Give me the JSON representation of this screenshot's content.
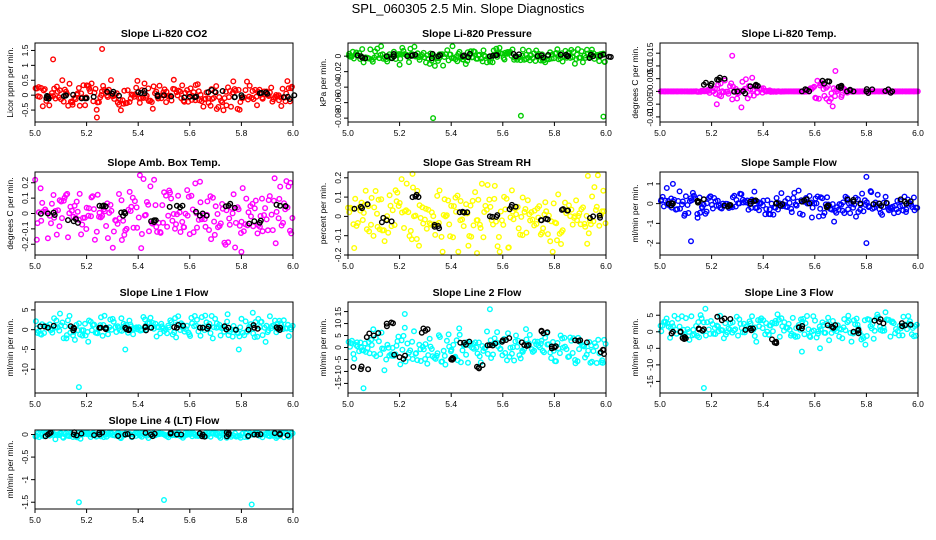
{
  "title": "SPL_060305  2.5 Min. Slope Diagnostics",
  "chart_data": [
    {
      "type": "scatter",
      "title": "Slope Li-820 CO2",
      "ylabel": "Licor ppm per min.",
      "xlim": [
        5.0,
        6.0
      ],
      "xticks": [
        "5.0",
        "5.2",
        "5.4",
        "5.6",
        "5.8",
        "6.0"
      ],
      "ylim": [
        -0.9,
        1.75
      ],
      "yticks": [
        -0.5,
        0.0,
        0.5,
        1.0,
        1.5
      ],
      "color": "#ff0000",
      "spread": 0.22,
      "center": 0.0,
      "black_points": [
        [
          5.05,
          -0.05
        ],
        [
          5.12,
          0.0
        ],
        [
          5.2,
          -0.1
        ],
        [
          5.3,
          0.05
        ],
        [
          5.4,
          0.1
        ],
        [
          5.5,
          0.0
        ],
        [
          5.6,
          -0.05
        ],
        [
          5.7,
          0.1
        ],
        [
          5.8,
          0.0
        ],
        [
          5.9,
          0.05
        ],
        [
          5.98,
          -0.05
        ]
      ],
      "outliers": [
        [
          5.26,
          1.55
        ],
        [
          5.07,
          1.2
        ],
        [
          5.24,
          -0.75
        ]
      ]
    },
    {
      "type": "scatter",
      "title": "Slope Li-820 Pressure",
      "ylabel": "kPa per min.",
      "xlim": [
        5.0,
        6.0
      ],
      "xticks": [
        "5.0",
        "5.2",
        "5.4",
        "5.6",
        "5.8",
        "6.0"
      ],
      "ylim": [
        -0.085,
        0.017
      ],
      "yticks": [
        -0.08,
        -0.06,
        -0.04,
        -0.02,
        0.0
      ],
      "color": "#00cc00",
      "spread": 0.005,
      "center": 0.0,
      "black_points": [
        [
          5.05,
          0.0
        ],
        [
          5.15,
          0.0
        ],
        [
          5.25,
          0.001
        ],
        [
          5.35,
          0.0
        ],
        [
          5.45,
          0.001
        ],
        [
          5.55,
          0.0
        ],
        [
          5.65,
          0.0
        ],
        [
          5.75,
          0.001
        ],
        [
          5.85,
          0.0
        ],
        [
          5.95,
          0.0
        ],
        [
          5.99,
          0.002
        ]
      ],
      "outliers": [
        [
          5.33,
          -0.08
        ],
        [
          5.67,
          -0.077
        ],
        [
          5.99,
          -0.078
        ],
        [
          5.2,
          -0.011
        ]
      ]
    },
    {
      "type": "scatter",
      "title": "Slope Li-820 Temp.",
      "ylabel": "degrees C per min.",
      "xlim": [
        5.0,
        6.0
      ],
      "xticks": [
        "5.0",
        "5.2",
        "5.4",
        "5.6",
        "5.8",
        "6.0"
      ],
      "ylim": [
        -0.012,
        0.019
      ],
      "yticks": [
        -0.01,
        -0.005,
        0.0,
        0.005,
        0.01,
        0.015
      ],
      "color": "#ff00ff",
      "spread": 0.0,
      "center": 0.0,
      "black_points": [
        [
          5.2,
          0.003
        ],
        [
          5.25,
          0.005
        ],
        [
          5.3,
          0.0
        ],
        [
          5.35,
          0.002
        ],
        [
          5.55,
          0.0
        ],
        [
          5.65,
          0.004
        ],
        [
          5.7,
          0.002
        ],
        [
          5.75,
          0.0
        ],
        [
          5.8,
          0.0
        ],
        [
          5.9,
          0.0
        ]
      ],
      "outliers": [
        [
          5.28,
          0.014
        ],
        [
          5.22,
          -0.005
        ],
        [
          5.68,
          0.008
        ]
      ]
    },
    {
      "type": "scatter",
      "title": "Slope Amb. Box Temp.",
      "ylabel": "degrees C per min.",
      "xlim": [
        5.0,
        6.0
      ],
      "xticks": [
        "5.0",
        "5.2",
        "5.4",
        "5.6",
        "5.8",
        "6.0"
      ],
      "ylim": [
        -0.27,
        0.27
      ],
      "yticks": [
        -0.2,
        -0.1,
        0.0,
        0.1,
        0.2
      ],
      "color": "#ff00ff",
      "spread": 0.1,
      "center": 0.0,
      "black_points": [
        [
          5.05,
          0.0
        ],
        [
          5.15,
          -0.05
        ],
        [
          5.25,
          0.05
        ],
        [
          5.35,
          0.0
        ],
        [
          5.45,
          -0.05
        ],
        [
          5.55,
          0.05
        ],
        [
          5.65,
          0.0
        ],
        [
          5.75,
          0.05
        ],
        [
          5.85,
          -0.05
        ],
        [
          5.95,
          0.05
        ]
      ],
      "outliers": [
        [
          5.8,
          -0.25
        ],
        [
          5.99,
          0.2
        ]
      ]
    },
    {
      "type": "scatter",
      "title": "Slope Gas Stream RH",
      "ylabel": "percent per min.",
      "xlim": [
        5.0,
        6.0
      ],
      "xticks": [
        "5.0",
        "5.2",
        "5.4",
        "5.6",
        "5.8",
        "6.0"
      ],
      "ylim": [
        -0.2,
        0.23
      ],
      "yticks": [
        -0.2,
        -0.1,
        0.0,
        0.1,
        0.2
      ],
      "color": "#ffff00",
      "spread": 0.08,
      "center": 0.0,
      "black_points": [
        [
          5.05,
          0.05
        ],
        [
          5.15,
          -0.02
        ],
        [
          5.25,
          0.1
        ],
        [
          5.35,
          -0.05
        ],
        [
          5.45,
          0.02
        ],
        [
          5.55,
          0.0
        ],
        [
          5.65,
          0.05
        ],
        [
          5.75,
          -0.02
        ],
        [
          5.85,
          0.03
        ],
        [
          5.95,
          0.0
        ]
      ],
      "outliers": [
        [
          5.25,
          0.22
        ],
        [
          5.5,
          -0.19
        ],
        [
          5.93,
          0.21
        ]
      ]
    },
    {
      "type": "scatter",
      "title": "Slope Sample Flow",
      "ylabel": "ml/min per min.",
      "xlim": [
        5.0,
        6.0
      ],
      "xticks": [
        "5.0",
        "5.2",
        "5.4",
        "5.6",
        "5.8",
        "6.0"
      ],
      "ylim": [
        -2.6,
        1.6
      ],
      "yticks": [
        -2,
        -1,
        0,
        1
      ],
      "color": "#0000ff",
      "spread": 0.3,
      "center": 0.0,
      "black_points": [
        [
          5.05,
          0.0
        ],
        [
          5.15,
          0.1
        ],
        [
          5.25,
          -0.1
        ],
        [
          5.35,
          0.1
        ],
        [
          5.45,
          0.0
        ],
        [
          5.55,
          0.1
        ],
        [
          5.65,
          -0.1
        ],
        [
          5.75,
          0.1
        ],
        [
          5.85,
          0.0
        ],
        [
          5.95,
          0.1
        ]
      ],
      "outliers": [
        [
          5.12,
          -1.9
        ],
        [
          5.8,
          -2.0
        ],
        [
          5.8,
          1.35
        ],
        [
          5.05,
          1.0
        ]
      ]
    },
    {
      "type": "scatter",
      "title": "Slope Line 1 Flow",
      "ylabel": "ml/min per min.",
      "xlim": [
        5.0,
        6.0
      ],
      "xticks": [
        "5.0",
        "5.2",
        "5.4",
        "5.6",
        "5.8",
        "6.0"
      ],
      "ylim": [
        -16,
        7
      ],
      "yticks": [
        -10,
        -5,
        0,
        5
      ],
      "color": "#00ffff",
      "spread": 1.5,
      "center": 0.5,
      "black_points": [
        [
          5.05,
          0.5
        ],
        [
          5.15,
          0.5
        ],
        [
          5.25,
          0.5
        ],
        [
          5.35,
          0.5
        ],
        [
          5.45,
          0.5
        ],
        [
          5.55,
          0.5
        ],
        [
          5.65,
          0.5
        ],
        [
          5.75,
          0.5
        ],
        [
          5.85,
          0.5
        ],
        [
          5.95,
          0.5
        ]
      ],
      "outliers": [
        [
          5.17,
          -14.5
        ],
        [
          5.35,
          -5.0
        ],
        [
          5.79,
          -5.0
        ]
      ]
    },
    {
      "type": "scatter",
      "title": "Slope Line 2 Flow",
      "ylabel": "ml/min per min.",
      "xlim": [
        5.0,
        6.0
      ],
      "xticks": [
        "5.0",
        "5.2",
        "5.4",
        "5.6",
        "5.8",
        "6.0"
      ],
      "ylim": [
        -19,
        19
      ],
      "yticks": [
        -15,
        -10,
        -5,
        0,
        5,
        10,
        15
      ],
      "color": "#00ffff",
      "spread": 3.5,
      "center": 0.0,
      "black_points": [
        [
          5.05,
          -9
        ],
        [
          5.1,
          5
        ],
        [
          5.15,
          10
        ],
        [
          5.2,
          -4
        ],
        [
          5.3,
          7
        ],
        [
          5.4,
          -5
        ],
        [
          5.45,
          2
        ],
        [
          5.5,
          -8
        ],
        [
          5.55,
          1
        ],
        [
          5.6,
          3
        ],
        [
          5.7,
          1
        ],
        [
          5.75,
          7
        ],
        [
          5.8,
          0
        ],
        [
          5.9,
          3
        ],
        [
          5.98,
          -2
        ]
      ],
      "outliers": [
        [
          5.06,
          -17
        ],
        [
          5.55,
          16
        ],
        [
          5.22,
          14
        ]
      ]
    },
    {
      "type": "scatter",
      "title": "Slope Line 3 Flow",
      "ylabel": "ml/min per min.",
      "xlim": [
        5.0,
        6.0
      ],
      "xticks": [
        "5.0",
        "5.2",
        "5.4",
        "5.6",
        "5.8",
        "6.0"
      ],
      "ylim": [
        -18.5,
        9
      ],
      "yticks": [
        -15,
        -10,
        -5,
        0,
        5
      ],
      "color": "#00ffff",
      "spread": 2.0,
      "center": 1.5,
      "black_points": [
        [
          5.05,
          0
        ],
        [
          5.1,
          -2
        ],
        [
          5.15,
          1
        ],
        [
          5.25,
          4
        ],
        [
          5.35,
          1
        ],
        [
          5.45,
          -3
        ],
        [
          5.55,
          1
        ],
        [
          5.65,
          2
        ],
        [
          5.75,
          0
        ],
        [
          5.85,
          3
        ],
        [
          5.95,
          2
        ]
      ],
      "outliers": [
        [
          5.17,
          -17
        ],
        [
          5.62,
          -5
        ],
        [
          5.55,
          -6
        ]
      ]
    },
    {
      "type": "scatter",
      "title": "Slope Line 4 (LT) Flow",
      "ylabel": "ml/min per min.",
      "xlim": [
        5.0,
        6.0
      ],
      "xticks": [
        "5.0",
        "5.2",
        "5.4",
        "5.6",
        "5.8",
        "6.0"
      ],
      "ylim": [
        -1.65,
        0.1
      ],
      "yticks": [
        -1.5,
        -1.0,
        -0.5,
        0.0
      ],
      "color": "#00ffff",
      "spread": 0.04,
      "center": 0.0,
      "black_points": [
        [
          5.05,
          0.0
        ],
        [
          5.15,
          0.0
        ],
        [
          5.25,
          0.0
        ],
        [
          5.35,
          0.0
        ],
        [
          5.45,
          0.0
        ],
        [
          5.55,
          0.0
        ],
        [
          5.65,
          0.0
        ],
        [
          5.75,
          0.0
        ],
        [
          5.85,
          0.0
        ],
        [
          5.95,
          0.0
        ]
      ],
      "outliers": [
        [
          5.17,
          -1.5
        ],
        [
          5.5,
          -1.45
        ],
        [
          5.84,
          -1.55
        ]
      ]
    }
  ]
}
